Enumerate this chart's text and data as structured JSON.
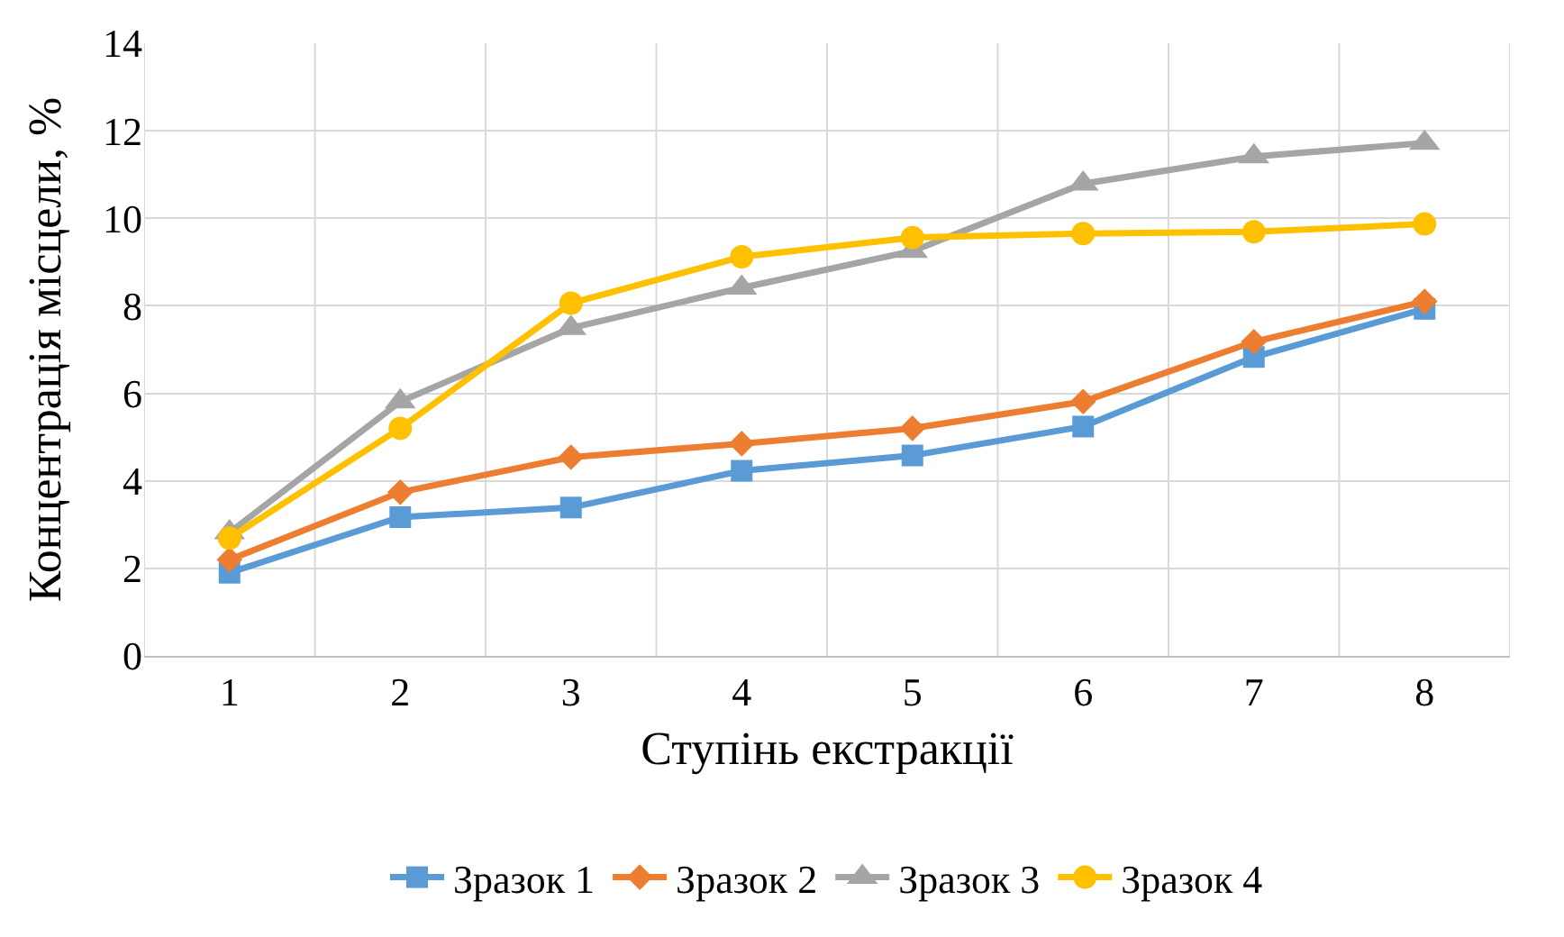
{
  "chart_data": {
    "type": "line",
    "xlabel": "Ступінь екстракції",
    "ylabel": "Концентрація місцели, %",
    "categories": [
      "1",
      "2",
      "3",
      "4",
      "5",
      "6",
      "7",
      "8"
    ],
    "series": [
      {
        "name": "Зразок 1",
        "color": "#5b9bd5",
        "marker": "square",
        "values": [
          1.9,
          3.17,
          3.39,
          4.23,
          4.58,
          5.24,
          6.83,
          7.93
        ]
      },
      {
        "name": "Зразок 2",
        "color": "#ed7d31",
        "marker": "diamond",
        "values": [
          2.2,
          3.74,
          4.54,
          4.85,
          5.2,
          5.81,
          7.18,
          8.1
        ]
      },
      {
        "name": "Зразок 3",
        "color": "#a5a5a5",
        "marker": "triangle",
        "values": [
          2.82,
          5.81,
          7.49,
          8.41,
          9.25,
          10.79,
          11.41,
          11.72
        ]
      },
      {
        "name": "Зразок 4",
        "color": "#ffc000",
        "marker": "circle",
        "values": [
          2.69,
          5.2,
          8.06,
          9.12,
          9.56,
          9.65,
          9.69,
          9.87
        ]
      }
    ],
    "ylim": [
      0,
      14
    ],
    "yticks": [
      0,
      2,
      4,
      6,
      8,
      10,
      12,
      14
    ],
    "grid": true,
    "legend": "bottom",
    "line_style": "solid"
  }
}
